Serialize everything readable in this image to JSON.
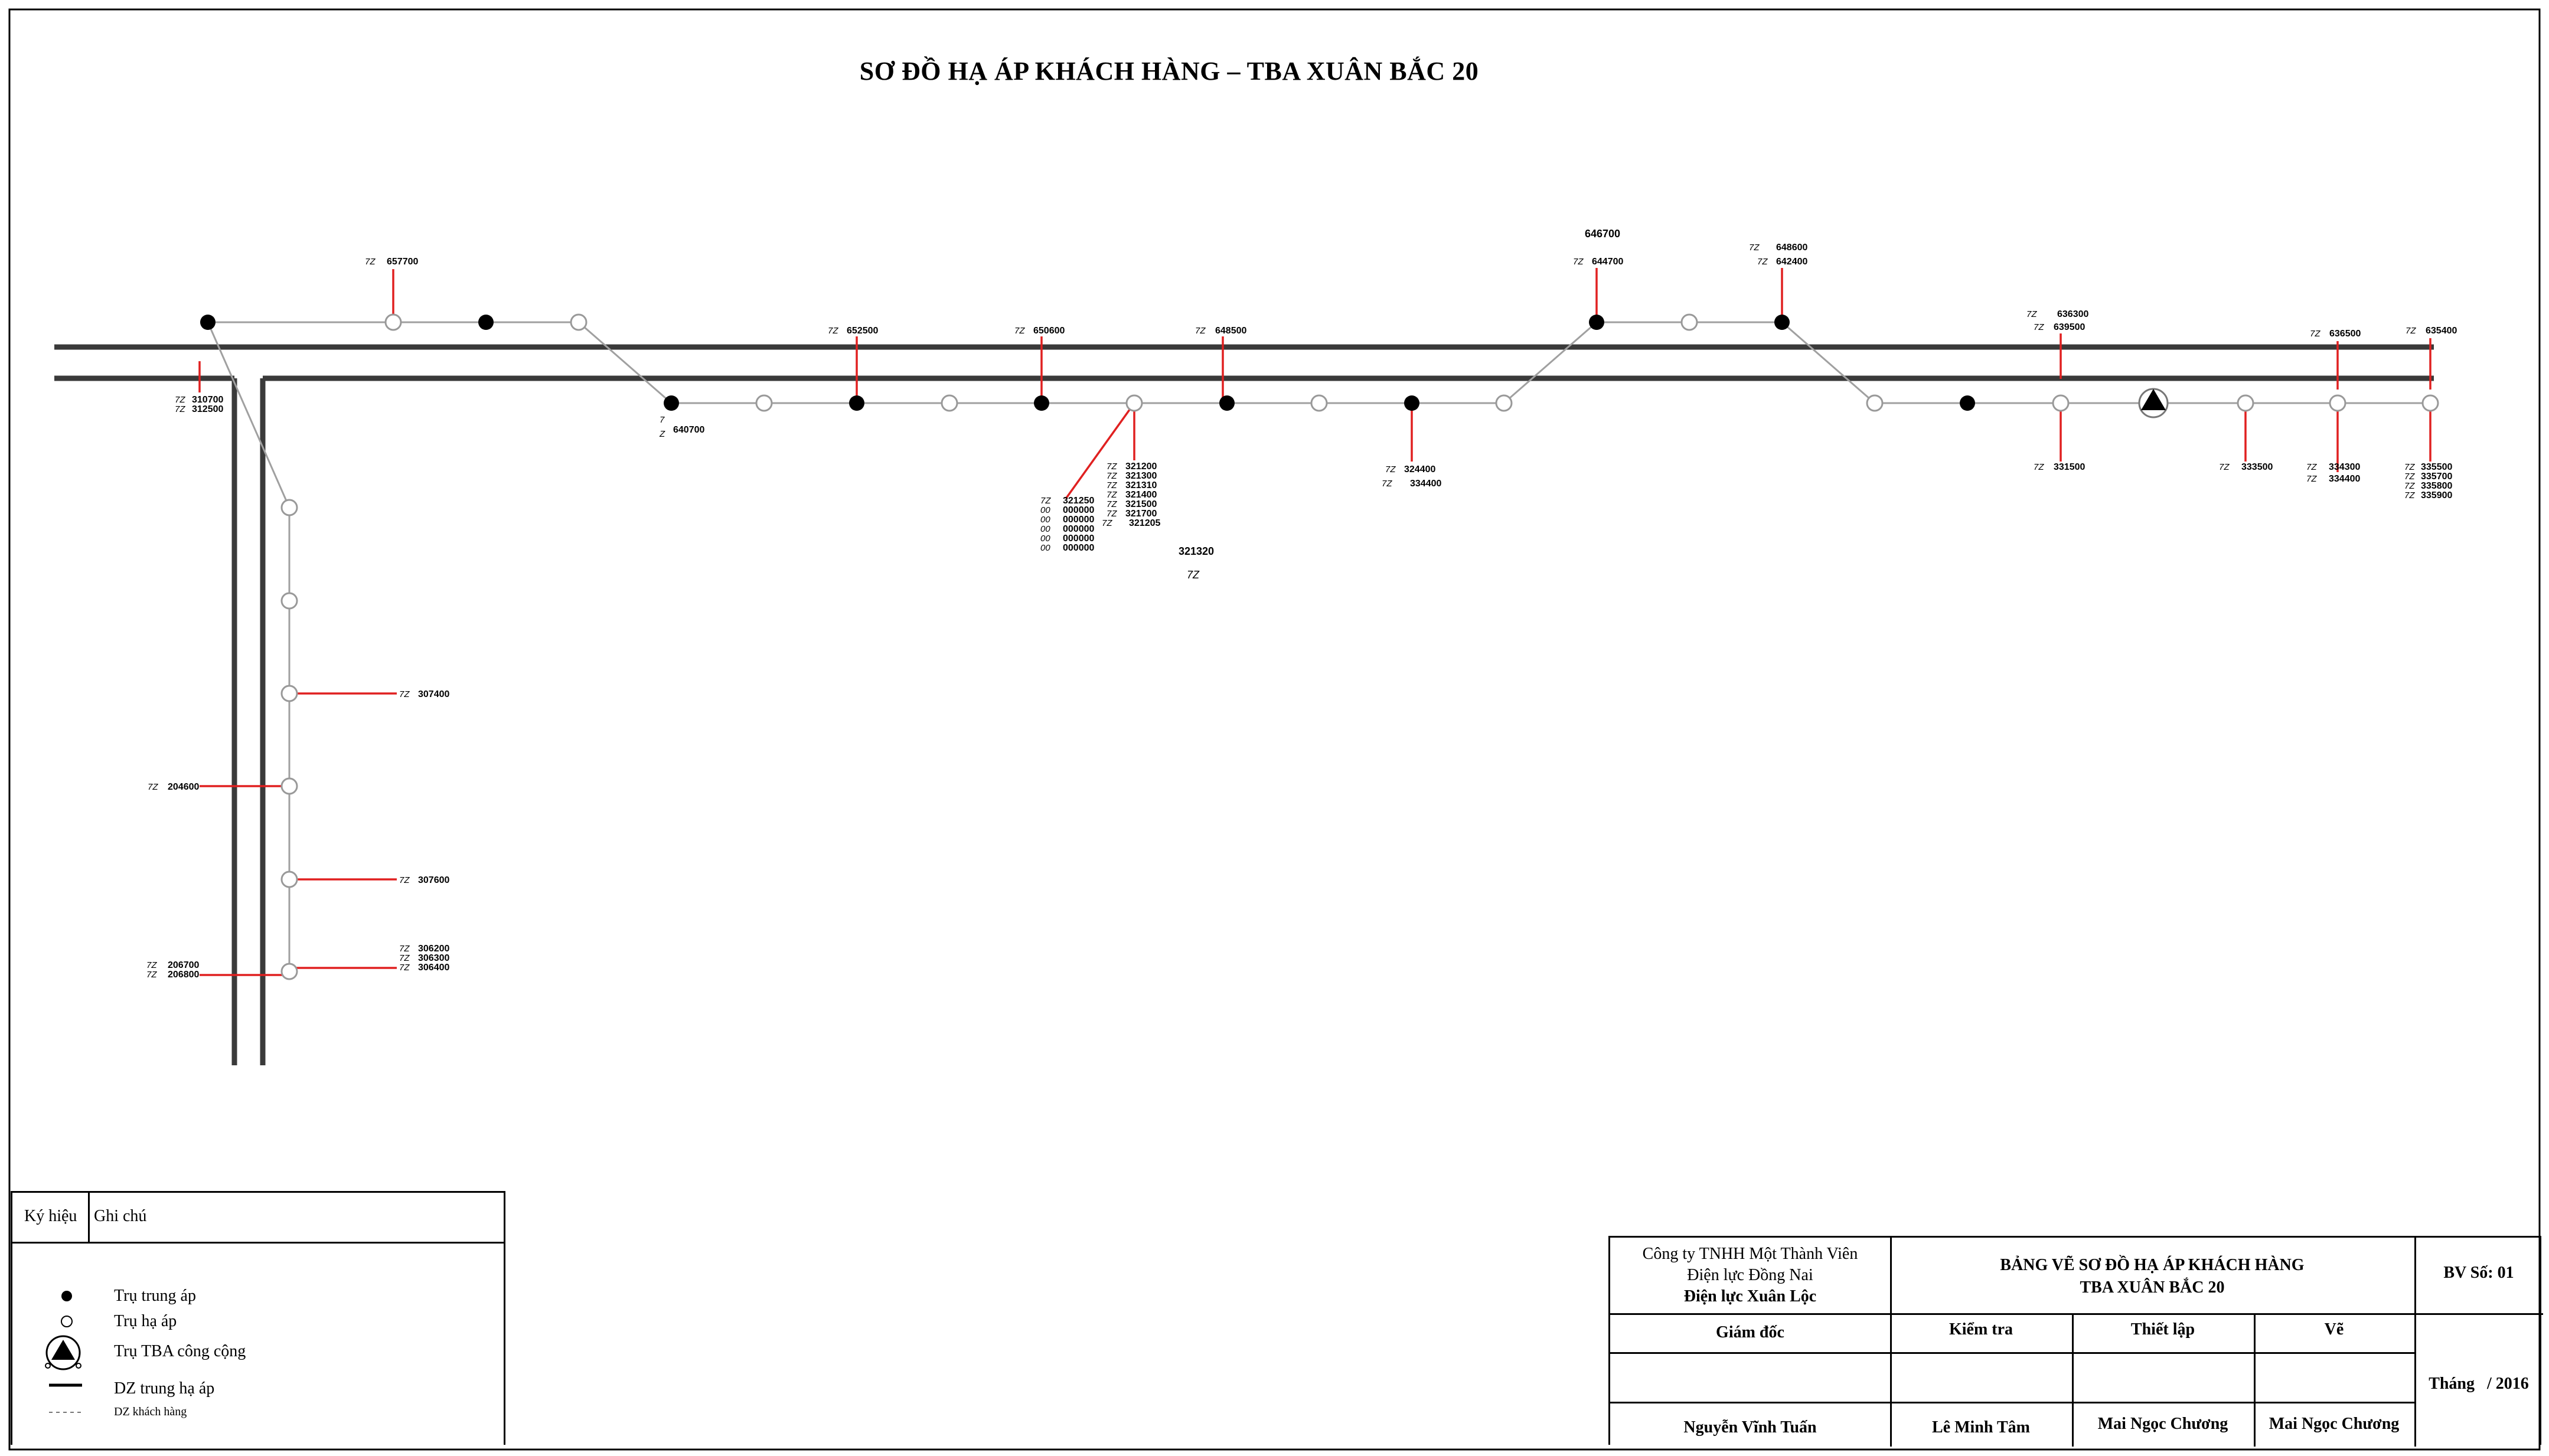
{
  "title": "SƠ ĐỒ HẠ ÁP KHÁCH HÀNG – TBA XUÂN BẮC 20",
  "diagram": {
    "labels": [
      {
        "id": "l1",
        "main": "657700",
        "prefix": "7Z"
      },
      {
        "id": "l2",
        "main": "310700",
        "prefix": "7Z"
      },
      {
        "id": "l3",
        "main": "312500",
        "prefix": "7Z"
      },
      {
        "id": "l4",
        "main": "640700",
        "prefix": "7\nZ"
      },
      {
        "id": "l5",
        "main": "652500",
        "prefix": "7Z"
      },
      {
        "id": "l6",
        "main": "650600",
        "prefix": "7Z"
      },
      {
        "id": "l7",
        "main": "648500",
        "prefix": "7Z"
      },
      {
        "id": "l8",
        "main": "646700",
        "prefix": ""
      },
      {
        "id": "l9",
        "main": "644700",
        "prefix": "7Z"
      },
      {
        "id": "l10",
        "main": "648600",
        "prefix": "7Z"
      },
      {
        "id": "l11",
        "main": "642400",
        "prefix": "7Z"
      },
      {
        "id": "l12",
        "main": "636300",
        "prefix": "7Z"
      },
      {
        "id": "l13",
        "main": "639500",
        "prefix": "7Z"
      },
      {
        "id": "l14",
        "main": "636500",
        "prefix": "7Z"
      },
      {
        "id": "l15",
        "main": "635400",
        "prefix": "7Z"
      },
      {
        "id": "l16",
        "main": "324400",
        "prefix": "7Z"
      },
      {
        "id": "l17",
        "main": "334400",
        "prefix": "7Z"
      },
      {
        "id": "l18",
        "main": "331500",
        "prefix": "7Z"
      },
      {
        "id": "l19",
        "main": "333500",
        "prefix": "7Z"
      },
      {
        "id": "l20",
        "main": "334300",
        "prefix": "7Z"
      },
      {
        "id": "l21",
        "main": "334400",
        "prefix": "7Z"
      },
      {
        "id": "l22",
        "main": "335500",
        "prefix": "7Z"
      },
      {
        "id": "l23",
        "main": "335700",
        "prefix": "7Z"
      },
      {
        "id": "l24",
        "main": "335800",
        "prefix": "7Z"
      },
      {
        "id": "l25",
        "main": "335900",
        "prefix": "7Z"
      },
      {
        "id": "l26",
        "main": "321320",
        "prefix": ""
      },
      {
        "id": "l27",
        "main": "307400",
        "prefix": "7Z"
      },
      {
        "id": "l28",
        "main": "204600",
        "prefix": "7Z"
      },
      {
        "id": "l29",
        "main": "307600",
        "prefix": "7Z"
      },
      {
        "id": "l30",
        "main": "306200",
        "prefix": "7Z"
      },
      {
        "id": "l31",
        "main": "306300",
        "prefix": "7Z"
      },
      {
        "id": "l32",
        "main": "306400",
        "prefix": "7Z"
      },
      {
        "id": "l33",
        "main": "206700",
        "prefix": "7Z"
      },
      {
        "id": "l34",
        "main": "206800",
        "prefix": "7Z"
      }
    ],
    "cluster_right": [
      "321200",
      "321300",
      "321310",
      "321400",
      "321500",
      "321700",
      "321205"
    ],
    "cluster_left": [
      "321250",
      "000000",
      "000000",
      "000000",
      "000000",
      "000000"
    ],
    "cluster_left_prefix": [
      "7Z",
      "00",
      "00",
      "00",
      "00",
      "00"
    ],
    "cluster_prefix": "7Z",
    "label_7z": "7Z"
  },
  "legend": {
    "col1": "Ký hiệu",
    "col2": "Ghi chú",
    "items": [
      {
        "symbol": "filled-dot-icon",
        "text": "Trụ trung áp"
      },
      {
        "symbol": "open-dot-icon",
        "text": "Trụ hạ áp"
      },
      {
        "symbol": "transformer-icon",
        "text": "Trụ TBA công cộng"
      },
      {
        "symbol": "thick-line-icon",
        "text": "DZ trung hạ áp"
      },
      {
        "symbol": "dashed-line-icon",
        "text": "DZ khách hàng"
      }
    ]
  },
  "title_block": {
    "company_line1": "Công ty TNHH Một Thành Viên",
    "company_line2": "Điện lực Đồng Nai",
    "company_line3": "Điện lực Xuân Lộc",
    "drawing_title1": "BẢNG VẼ SƠ ĐỒ HẠ ÁP KHÁCH HÀNG",
    "drawing_title2": "TBA XUÂN BẮC 20",
    "sheet_no": "BV Số: 01",
    "col_director": "Giám đốc",
    "col_check": "Kiểm tra",
    "col_setup": "Thiết lập",
    "col_draw": "Vẽ",
    "name_director": "Nguyễn Vĩnh Tuấn",
    "name_check": "Lê Minh Tâm",
    "name_setup": "Mai Ngọc Chương",
    "name_draw": "Mai Ngọc Chương",
    "month": "Tháng   / 2016"
  },
  "colors": {
    "mv_line": "#3a3a3a",
    "lv_line": "#a0a0a0",
    "customer_line": "#e02020"
  }
}
